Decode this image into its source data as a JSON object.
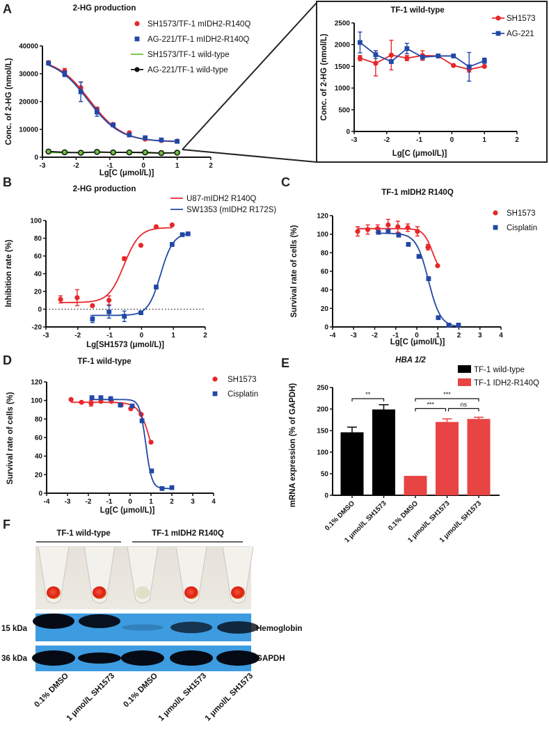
{
  "panel_letters": [
    "A",
    "B",
    "C",
    "D",
    "E",
    "F"
  ],
  "chart_data": [
    {
      "type": "line",
      "title": "2-HG production",
      "xlabel": "Lg[C (μmol/L)]",
      "ylabel": "Conc. of 2-HG (nmol/L)",
      "xlim": [
        -3,
        2
      ],
      "ylim": [
        0,
        40000
      ],
      "xticks": [
        -3,
        -2,
        -1,
        0,
        1,
        2
      ],
      "yticks": [
        0,
        10000,
        20000,
        30000,
        40000
      ],
      "legend_position": "top-right",
      "series": [
        {
          "name": "SH1573/TF-1 mIDH2-R140Q",
          "color": "#e8262a",
          "marker": "circle",
          "legend_symbol": "circle",
          "x": [
            -2.82,
            -2.34,
            -1.86,
            -1.38,
            -0.9,
            -0.42,
            0.05,
            0.53,
            1.0
          ],
          "y": [
            34000,
            31000,
            25000,
            17200,
            11800,
            8800,
            6500,
            6000,
            5800
          ],
          "err": [
            600,
            900,
            2000,
            800,
            400,
            400,
            400,
            300,
            300
          ],
          "fit": {
            "bottom": 5500,
            "top": 35500,
            "logEC50": -1.6,
            "hill": -0.9
          }
        },
        {
          "name": "AG-221/TF-1 mIDH2-R140Q",
          "color": "#2148a6",
          "marker": "square",
          "legend_symbol": "square",
          "x": [
            -2.82,
            -2.34,
            -1.86,
            -1.38,
            -0.9,
            -0.42,
            0.05,
            0.53,
            1.0
          ],
          "y": [
            33800,
            30000,
            23500,
            16200,
            11600,
            8000,
            7000,
            6200,
            5700
          ],
          "err": [
            500,
            1000,
            3500,
            1500,
            400,
            400,
            400,
            300,
            300
          ],
          "fit": {
            "bottom": 5600,
            "top": 35500,
            "logEC50": -1.65,
            "hill": -0.9
          }
        },
        {
          "name": "SH1573/TF-1 wild-type",
          "color": "#6bbf3a",
          "marker": "none",
          "legend_symbol": "line",
          "x": [
            -2.82,
            -2.34,
            -1.86,
            -1.38,
            -0.9,
            -0.42,
            0.05,
            0.53,
            1.0
          ],
          "y": [
            1690,
            1570,
            1760,
            1690,
            1750,
            1740,
            1520,
            1430,
            1500
          ],
          "connect": true
        },
        {
          "name": "AG-221/TF-1 wild-type",
          "color": "#111111",
          "marker": "circle",
          "legend_symbol": "line-circle",
          "x": [
            -2.82,
            -2.34,
            -1.86,
            -1.38,
            -0.9,
            -0.42,
            0.05,
            0.53,
            1.0
          ],
          "y": [
            2050,
            1770,
            1610,
            1910,
            1710,
            1740,
            1740,
            1490,
            1630
          ],
          "connect": true,
          "marker_fill": "#6bbf3a"
        }
      ]
    },
    {
      "type": "line",
      "title": "TF-1 wild-type",
      "xlabel": "Lg[C (μmol/L)]",
      "ylabel": "Conc. of 2-HG (nmol/L)",
      "xlim": [
        -3,
        2
      ],
      "ylim": [
        0,
        2500
      ],
      "xticks": [
        -3,
        -2,
        -1,
        0,
        1,
        2
      ],
      "yticks": [
        0,
        500,
        1000,
        1500,
        2000,
        2500
      ],
      "legend_position": "top-right",
      "series": [
        {
          "name": "SH1573",
          "color": "#e8262a",
          "marker": "circle",
          "legend_symbol": "line-circle",
          "connect": true,
          "x": [
            -2.82,
            -2.34,
            -1.86,
            -1.38,
            -0.9,
            -0.42,
            0.05,
            0.53,
            1.0
          ],
          "y": [
            1690,
            1570,
            1760,
            1690,
            1750,
            1740,
            1520,
            1430,
            1500
          ],
          "err": [
            60,
            290,
            340,
            60,
            110,
            30,
            20,
            60,
            20
          ]
        },
        {
          "name": "AG-221",
          "color": "#2148a6",
          "marker": "square",
          "legend_symbol": "line-square",
          "connect": true,
          "x": [
            -2.82,
            -2.34,
            -1.86,
            -1.38,
            -0.9,
            -0.42,
            0.05,
            0.53,
            1.0
          ],
          "y": [
            2050,
            1770,
            1610,
            1910,
            1710,
            1740,
            1740,
            1490,
            1630
          ],
          "err": [
            240,
            90,
            30,
            120,
            40,
            20,
            30,
            330,
            60
          ]
        }
      ]
    },
    {
      "type": "scatter",
      "title": "2-HG production",
      "xlabel": "Lg[SH1573 (μmol/L)]",
      "ylabel": "Inhibition rate (%)",
      "xlim": [
        -3,
        2
      ],
      "ylim": [
        -20,
        100
      ],
      "xticks": [
        -3,
        -2,
        -1,
        0,
        1,
        2
      ],
      "yticks": [
        -20,
        0,
        20,
        40,
        60,
        80,
        100
      ],
      "reference_line_y": 0,
      "legend_position": "top-right",
      "series": [
        {
          "name": "U87-mIDH2 R140Q",
          "color": "#e8262a",
          "marker": "circle",
          "legend_symbol": "line",
          "x": [
            -2.54,
            -2.02,
            -1.54,
            -1.02,
            -0.54,
            -0.02,
            0.46,
            0.96
          ],
          "y": [
            11,
            13,
            4,
            10,
            57,
            72,
            93,
            95
          ],
          "err": [
            4,
            9,
            0,
            5,
            2,
            0,
            0,
            0
          ],
          "fit": {
            "bottom": 7.5,
            "top": 92,
            "logEC50": -0.55,
            "hill": 1.8
          }
        },
        {
          "name": "SW1353 (mIDH2 R172S)",
          "color": "#2148a6",
          "marker": "square",
          "legend_symbol": "line",
          "x": [
            -1.54,
            -1.02,
            -0.54,
            -0.02,
            0.46,
            0.96,
            1.28,
            1.46
          ],
          "y": [
            -11,
            -3,
            -8,
            -4,
            25,
            73,
            84,
            85
          ],
          "err": [
            4,
            7,
            6,
            2,
            1,
            1,
            1,
            1
          ],
          "fit": {
            "bottom": -7,
            "top": 86,
            "logEC50": 0.6,
            "hill": 2.2
          }
        }
      ]
    },
    {
      "type": "scatter",
      "title": "TF-1 mIDH2 R140Q",
      "xlabel": "Lg[C (μmol/L)]",
      "ylabel": "Survival rate of cells (%)",
      "xlim": [
        -4,
        4
      ],
      "ylim": [
        0,
        120
      ],
      "xticks": [
        -4,
        -3,
        -2,
        -1,
        0,
        1,
        2,
        3,
        4
      ],
      "yticks": [
        0,
        20,
        40,
        60,
        80,
        100,
        120
      ],
      "legend_position": "top-right",
      "series": [
        {
          "name": "SH1573",
          "color": "#e8262a",
          "marker": "circle",
          "legend_symbol": "circle",
          "x": [
            -2.81,
            -2.33,
            -1.86,
            -1.36,
            -0.9,
            -0.43,
            0.03,
            0.53,
            0.99
          ],
          "y": [
            103,
            105,
            106,
            110,
            108,
            107,
            103,
            86,
            66
          ],
          "err": [
            5,
            5,
            4,
            6,
            6,
            4,
            5,
            3,
            1
          ],
          "fit": {
            "bottom": 55,
            "top": 106,
            "logEC50": 0.75,
            "hill": -2
          }
        },
        {
          "name": "Cisplatin",
          "color": "#2148a6",
          "marker": "square",
          "legend_symbol": "square",
          "x": [
            -1.82,
            -1.36,
            -0.86,
            -0.4,
            0.1,
            0.56,
            1.02,
            1.52,
            1.98
          ],
          "y": [
            102,
            103,
            99,
            89,
            76,
            52,
            10,
            2,
            2
          ],
          "err": [
            1,
            1,
            2,
            1,
            2,
            2,
            1,
            1,
            1
          ],
          "fit": {
            "bottom": 0,
            "top": 101,
            "logEC50": 0.55,
            "hill": -1.5
          }
        }
      ]
    },
    {
      "type": "scatter",
      "title": "TF-1 wild-type",
      "xlabel": "Lg[C (μmol/L)]",
      "ylabel": "Survival rate of cells (%)",
      "xlim": [
        -4,
        4
      ],
      "ylim": [
        0,
        120
      ],
      "xticks": [
        -4,
        -3,
        -2,
        -1,
        0,
        1,
        2,
        3,
        4
      ],
      "yticks": [
        0,
        20,
        40,
        60,
        80,
        100,
        120
      ],
      "legend_position": "top-right",
      "series": [
        {
          "name": "SH1573",
          "color": "#e8262a",
          "marker": "circle",
          "legend_symbol": "circle",
          "x": [
            -2.83,
            -2.33,
            -1.87,
            -1.4,
            -0.9,
            -0.43,
            0.03,
            0.53,
            1.0
          ],
          "y": [
            101,
            98,
            97,
            99,
            99,
            95,
            91,
            85,
            55
          ],
          "err": [
            1,
            1,
            3,
            1,
            1,
            1,
            1,
            1,
            1
          ],
          "fit": {
            "bottom": 0,
            "top": 98,
            "logEC50": 1.05,
            "hill": -1.5
          }
        },
        {
          "name": "Cisplatin",
          "color": "#2148a6",
          "marker": "square",
          "legend_symbol": "square",
          "x": [
            -1.83,
            -1.4,
            -0.93,
            -0.47,
            0.1,
            0.57,
            1.03,
            1.53,
            2.0
          ],
          "y": [
            103,
            103,
            102,
            95,
            94,
            78,
            24,
            5,
            6
          ],
          "err": [
            1,
            1,
            1,
            1,
            1,
            1,
            1,
            1,
            1
          ],
          "fit": {
            "bottom": 5,
            "top": 101,
            "logEC50": 0.75,
            "hill": -3
          }
        }
      ]
    },
    {
      "type": "bar",
      "title": "HBA 1/2",
      "xlabel": "",
      "ylabel": "mRNA expression (% of GAPDH)",
      "ylim": [
        0,
        250
      ],
      "yticks": [
        0,
        50,
        100,
        150,
        200,
        250
      ],
      "categories": [
        "0.1% DMSO",
        "1 μmol/L SH1573",
        "0.1% DMSO",
        "1 μmol/L SH1573",
        "1 μmol/L SH1573"
      ],
      "values": [
        146,
        199,
        45,
        170,
        177
      ],
      "err": [
        12,
        11,
        0,
        7,
        4
      ],
      "bar_group": [
        0,
        0,
        1,
        1,
        1
      ],
      "legend_position": "top-right",
      "legend": [
        {
          "name": "TF-1 wild-type",
          "color": "#000000"
        },
        {
          "name": "TF-1 IDH2-R140Q",
          "color": "#e84444"
        }
      ],
      "significance": [
        {
          "from": 0,
          "to": 1,
          "label": "**",
          "y": 224
        },
        {
          "from": 2,
          "to": 4,
          "label": "***",
          "y": 224
        },
        {
          "from": 2,
          "to": 3,
          "label": "***",
          "y": 201
        },
        {
          "from": 3,
          "to": 4,
          "label": "ns",
          "y": 201
        }
      ]
    }
  ],
  "blot": {
    "group_wt": "TF-1 wild-type",
    "group_mut": "TF-1 mIDH2 R140Q",
    "marker_15": "15 kDa",
    "marker_36": "36 kDa",
    "protein_1": "Hemoglobin",
    "protein_2": "GAPDH",
    "lanes": [
      "0.1% DMSO",
      "1 μmol/L SH1573",
      "0.1% DMSO",
      "1 μmol/L SH1573",
      "1 μmol/L SH1573"
    ],
    "pellet_red": [
      true,
      true,
      false,
      true,
      true
    ],
    "hemoglobin_intensity": [
      1.0,
      0.85,
      0.08,
      0.6,
      0.7
    ]
  }
}
